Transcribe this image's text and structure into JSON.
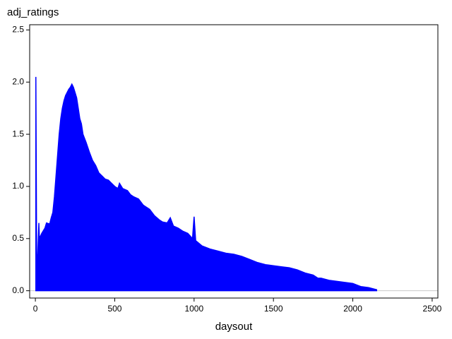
{
  "chart_data": {
    "type": "area",
    "title": "adj_ratings",
    "x_label": "daysout",
    "color": "#0000ff",
    "x": [
      3,
      8,
      15,
      22,
      25,
      40,
      60,
      70,
      90,
      100,
      110,
      120,
      130,
      140,
      150,
      160,
      170,
      180,
      190,
      200,
      210,
      220,
      230,
      240,
      250,
      260,
      270,
      280,
      290,
      300,
      320,
      340,
      360,
      380,
      400,
      420,
      440,
      460,
      480,
      500,
      520,
      530,
      550,
      580,
      600,
      620,
      650,
      680,
      700,
      720,
      750,
      780,
      800,
      830,
      850,
      870,
      900,
      930,
      960,
      990,
      1000,
      1010,
      1050,
      1100,
      1150,
      1200,
      1250,
      1300,
      1350,
      1400,
      1450,
      1500,
      1550,
      1600,
      1650,
      1700,
      1750,
      1780,
      1800,
      1850,
      1900,
      1950,
      2000,
      2050,
      2100,
      2150
    ],
    "values": [
      2.05,
      0.3,
      0.35,
      0.65,
      0.5,
      0.55,
      0.6,
      0.65,
      0.64,
      0.7,
      0.75,
      0.9,
      1.1,
      1.3,
      1.5,
      1.65,
      1.75,
      1.82,
      1.87,
      1.9,
      1.93,
      1.95,
      1.98,
      1.95,
      1.9,
      1.85,
      1.75,
      1.65,
      1.6,
      1.5,
      1.42,
      1.33,
      1.25,
      1.2,
      1.13,
      1.1,
      1.07,
      1.06,
      1.03,
      1.0,
      0.98,
      1.03,
      0.98,
      0.96,
      0.92,
      0.9,
      0.88,
      0.82,
      0.8,
      0.78,
      0.72,
      0.68,
      0.66,
      0.65,
      0.7,
      0.62,
      0.6,
      0.57,
      0.55,
      0.5,
      0.71,
      0.48,
      0.43,
      0.4,
      0.38,
      0.36,
      0.35,
      0.33,
      0.3,
      0.27,
      0.25,
      0.24,
      0.23,
      0.22,
      0.2,
      0.17,
      0.15,
      0.12,
      0.12,
      0.1,
      0.09,
      0.08,
      0.07,
      0.04,
      0.03,
      0.01
    ],
    "xlim": [
      -36,
      2536
    ],
    "ylim": [
      -0.07,
      2.55
    ],
    "xticks": [
      0,
      500,
      1000,
      1500,
      2000,
      2500
    ],
    "yticks": [
      {
        "value": 0,
        "label": "0.0"
      },
      0.5,
      {
        "value": 1,
        "label": "1.0"
      },
      1.5,
      {
        "value": 2,
        "label": "2.0"
      },
      2.5
    ]
  }
}
